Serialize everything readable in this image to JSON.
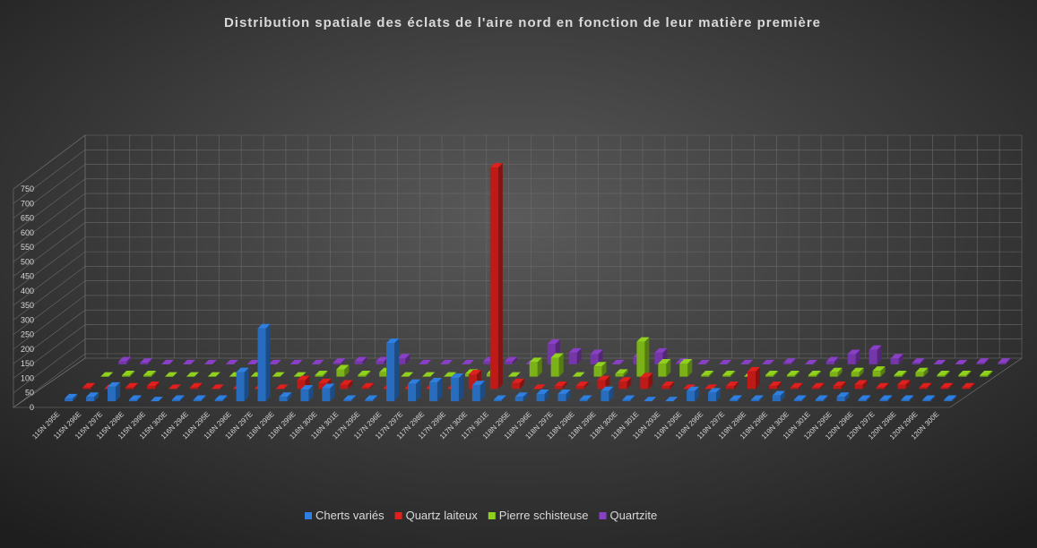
{
  "chart_data": {
    "type": "bar3d",
    "title": "Distribution spatiale des éclats de l'aire nord en fonction de leur matière première",
    "categories": [
      "115N 295E",
      "115N 296E",
      "115N 297E",
      "115N 298E",
      "115N 299E",
      "115N 300E",
      "116N 294E",
      "116N 295E",
      "116N 296E",
      "116N 297E",
      "116N 298E",
      "116N 299E",
      "116N 300E",
      "116N 301E",
      "117N 295E",
      "117N 296E",
      "117N 297E",
      "117N 298E",
      "117N 299E",
      "117N 300E",
      "117N 301E",
      "118N 295E",
      "118N 296E",
      "118N 297E",
      "118N 298E",
      "118N 299E",
      "118N 300E",
      "118N 301E",
      "119N 293E",
      "119N 295E",
      "119N 296E",
      "119N 297E",
      "119N 298E",
      "119N 299E",
      "119N 300E",
      "119N 301E",
      "120N 295E",
      "120N 296E",
      "120N 297E",
      "120N 298E",
      "120N 299E",
      "120N 300E"
    ],
    "series": [
      {
        "name": "Cherts variés",
        "color": "#2f7fe0",
        "values": [
          10,
          15,
          50,
          5,
          0,
          5,
          5,
          5,
          100,
          250,
          15,
          40,
          45,
          5,
          5,
          200,
          60,
          65,
          80,
          55,
          5,
          15,
          25,
          25,
          5,
          35,
          5,
          0,
          0,
          35,
          30,
          5,
          5,
          20,
          5,
          5,
          15,
          5,
          5,
          5,
          5,
          5
        ]
      },
      {
        "name": "Quartz laiteux",
        "color": "#e0201c",
        "values": [
          5,
          0,
          5,
          10,
          0,
          5,
          0,
          0,
          0,
          0,
          30,
          20,
          15,
          5,
          0,
          0,
          0,
          0,
          50,
          760,
          20,
          0,
          10,
          10,
          30,
          25,
          40,
          10,
          0,
          0,
          10,
          60,
          10,
          5,
          5,
          10,
          15,
          5,
          15,
          5,
          5,
          5
        ]
      },
      {
        "name": "Pierre schisteuse",
        "color": "#8fd11c",
        "values": [
          0,
          5,
          5,
          0,
          0,
          0,
          0,
          0,
          0,
          0,
          5,
          25,
          5,
          15,
          0,
          0,
          0,
          10,
          10,
          0,
          50,
          65,
          0,
          35,
          10,
          120,
          45,
          45,
          5,
          5,
          0,
          5,
          5,
          5,
          15,
          15,
          20,
          5,
          15,
          5,
          5,
          5
        ]
      },
      {
        "name": "Quartzite",
        "color": "#8a3fc7",
        "values": [
          10,
          5,
          0,
          0,
          0,
          0,
          0,
          0,
          0,
          0,
          5,
          10,
          10,
          20,
          0,
          0,
          0,
          10,
          10,
          0,
          70,
          40,
          35,
          0,
          25,
          40,
          5,
          0,
          0,
          0,
          0,
          5,
          0,
          10,
          35,
          50,
          20,
          5,
          0,
          0,
          5,
          5
        ]
      }
    ],
    "ylim": [
      0,
      750
    ],
    "yticks": [
      0,
      50,
      100,
      150,
      200,
      250,
      300,
      350,
      400,
      450,
      500,
      550,
      600,
      650,
      700,
      750
    ],
    "grid": true,
    "legend": "bottom"
  }
}
